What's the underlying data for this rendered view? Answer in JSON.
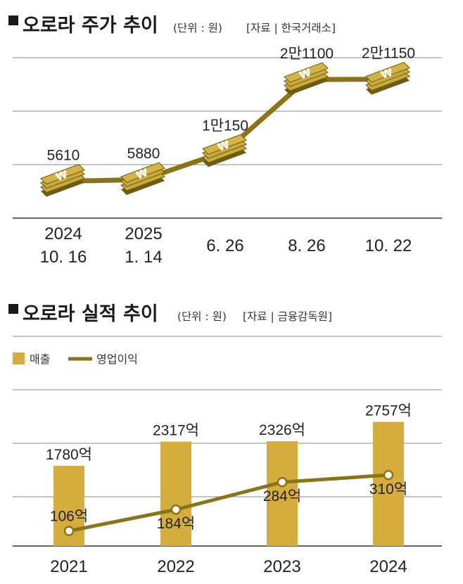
{
  "colors": {
    "bar": "#d4ad3c",
    "line": "#8a7417",
    "bill_dark": "#6e5c10",
    "bill_mid": "#a58a20",
    "bill_light": "#c9a93a",
    "text": "#222222",
    "grid": "#888888"
  },
  "chart_data": [
    {
      "type": "line",
      "title": "오로라 주가 추이",
      "unit_note": "(단위 : 원)",
      "source_note": "[자료 | 한국거래소]",
      "categories": [
        [
          "2024",
          "10. 16"
        ],
        [
          "2025",
          "1. 14"
        ],
        [
          "6. 26"
        ],
        [
          "8. 26"
        ],
        [
          "10. 22"
        ]
      ],
      "values": [
        5610,
        5880,
        10150,
        21100,
        21150
      ],
      "value_labels": [
        "5610",
        "5880",
        "1만150",
        "2만1100",
        "2만1150"
      ],
      "marker_icon": "won-bill-stack-icon",
      "ylim": [
        0,
        25000
      ],
      "grid": true
    },
    {
      "type": "bar",
      "title": "오로라 실적 추이",
      "unit_note": "(단위 : 원)",
      "source_note": "[자료 | 금융감독원]",
      "legend": [
        "매출",
        "영업이익"
      ],
      "legend_position": "top-left",
      "categories": [
        "2021",
        "2022",
        "2023",
        "2024"
      ],
      "series": [
        {
          "name": "매출",
          "kind": "bar",
          "values": [
            1780,
            2317,
            2326,
            2757
          ],
          "labels": [
            "1780억",
            "2317억",
            "2326억",
            "2757억"
          ]
        },
        {
          "name": "영업이익",
          "kind": "line",
          "values": [
            106,
            184,
            284,
            310
          ],
          "labels": [
            "106억",
            "184억",
            "284억",
            "310억"
          ]
        }
      ],
      "grid": true
    }
  ]
}
